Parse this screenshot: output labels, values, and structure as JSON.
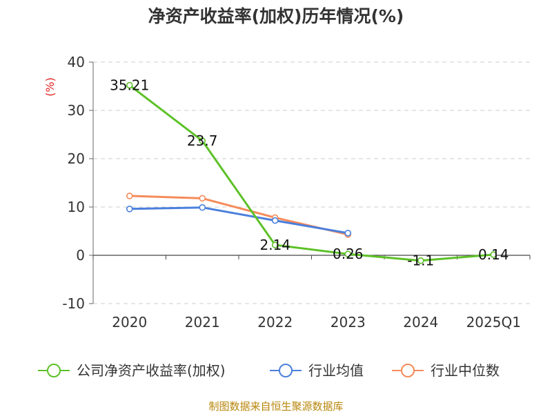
{
  "chart_data": {
    "type": "line",
    "title": "净资产收益率(加权)历年情况(%)",
    "ylabel": "(%)",
    "xlabel": "",
    "categories": [
      "2020",
      "2021",
      "2022",
      "2023",
      "2024",
      "2025Q1"
    ],
    "ylim": [
      -10,
      40
    ],
    "yticks": [
      40,
      30,
      20,
      10,
      0,
      -10
    ],
    "grid": true,
    "legend_position": "bottom",
    "series": [
      {
        "name": "公司净资产收益率(加权)",
        "color": "#5cc126",
        "values": [
          35.21,
          23.7,
          2.14,
          0.26,
          -1.1,
          0.14
        ],
        "labels": [
          "35.21",
          "23.7",
          "2.14",
          "0.26",
          "-1.1",
          "0.14"
        ]
      },
      {
        "name": "行业均值",
        "color": "#4a7fdc",
        "values": [
          9.6,
          9.9,
          7.2,
          4.6,
          null,
          null
        ]
      },
      {
        "name": "行业中位数",
        "color": "#f58b5a",
        "values": [
          12.3,
          11.8,
          7.8,
          4.3,
          null,
          null
        ]
      }
    ],
    "source": "制图数据来自恒生聚源数据库"
  }
}
